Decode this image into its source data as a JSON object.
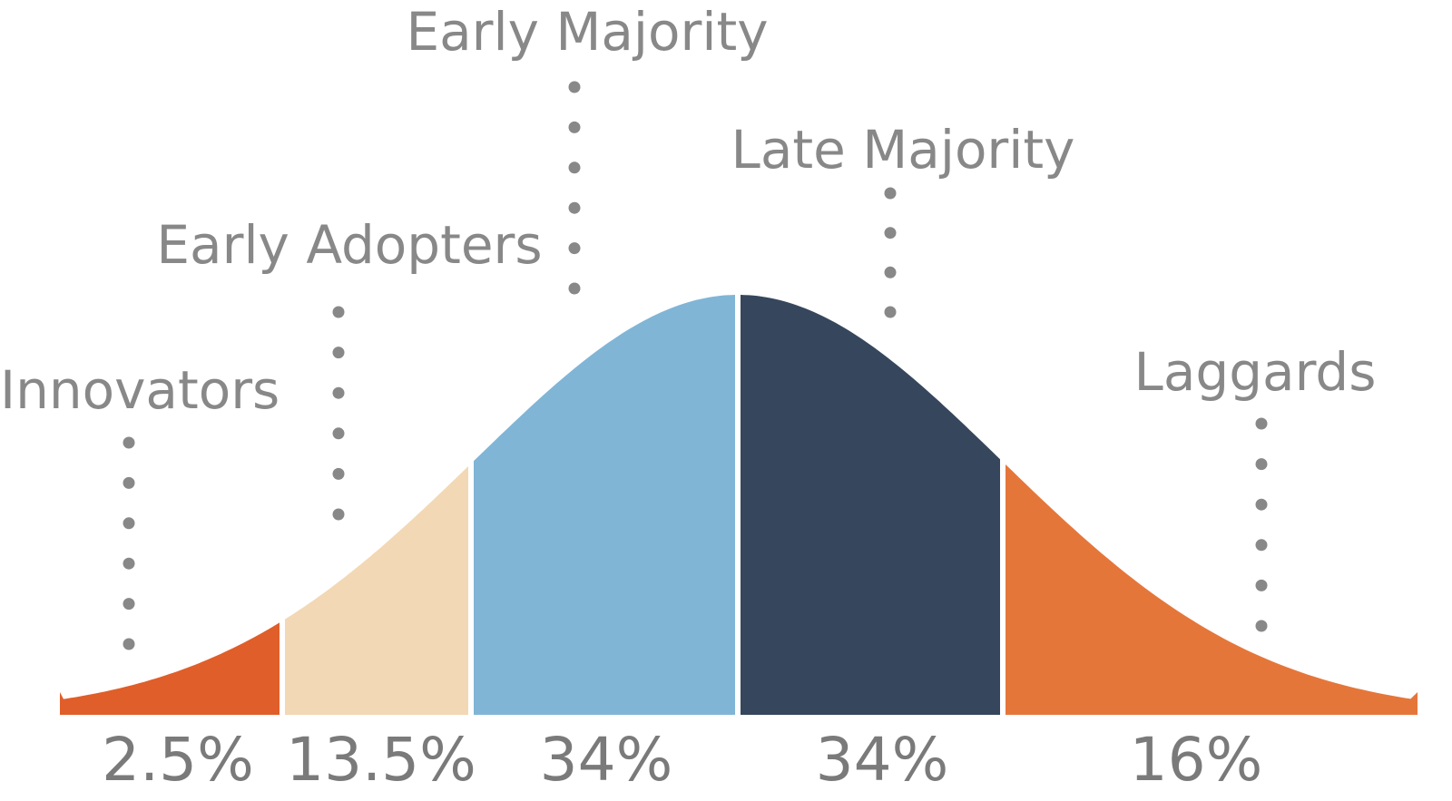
{
  "chart_data": {
    "type": "area",
    "title": "",
    "xlabel": "",
    "ylabel": "",
    "segments": [
      {
        "name": "Innovators",
        "value": 2.5,
        "label": "2.5%",
        "color": "#e05e2a"
      },
      {
        "name": "Early Adopters",
        "value": 13.5,
        "label": "13.5%",
        "color": "#f2d8b4"
      },
      {
        "name": "Early Majority",
        "value": 34,
        "label": "34%",
        "color": "#80b5d6"
      },
      {
        "name": "Late Majority",
        "value": 34,
        "label": "34%",
        "color": "#36465c"
      },
      {
        "name": "Laggards",
        "value": 16,
        "label": "16%",
        "color": "#e5763a"
      }
    ]
  }
}
